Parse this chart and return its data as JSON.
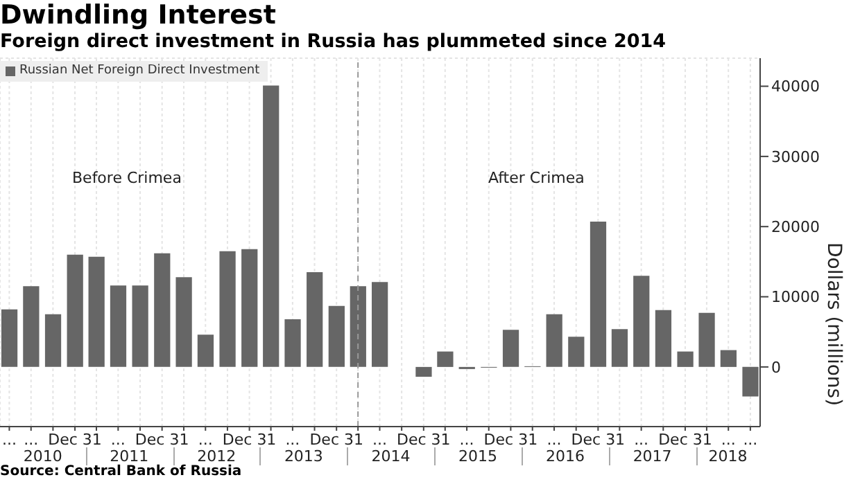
{
  "chart_data": {
    "type": "bar",
    "title": "Dwindling Interest",
    "subtitle": "Foreign direct investment in Russia has plummeted since 2014",
    "ylabel": "Dollars (millions)",
    "x": [
      "2010-03-31",
      "2010-06-30",
      "2010-09-30",
      "2010-12-31",
      "2011-03-31",
      "2011-06-30",
      "2011-09-30",
      "2011-12-31",
      "2012-03-31",
      "2012-06-30",
      "2012-09-30",
      "2012-12-31",
      "2013-03-31",
      "2013-06-30",
      "2013-09-30",
      "2013-12-31",
      "2014-03-31",
      "2014-06-30",
      "2014-09-30",
      "2014-12-31",
      "2015-03-31",
      "2015-06-30",
      "2015-09-30",
      "2015-12-31",
      "2016-03-31",
      "2016-06-30",
      "2016-09-30",
      "2016-12-31",
      "2017-03-31",
      "2017-06-30",
      "2017-09-30",
      "2017-12-31",
      "2018-03-31",
      "2018-06-30",
      "2018-09-30"
    ],
    "series": [
      {
        "name": "Russian Net Foreign Direct Investment",
        "color": "#666666",
        "values": [
          8200,
          11500,
          7500,
          16000,
          15700,
          11600,
          11600,
          16200,
          12800,
          4600,
          16500,
          16800,
          40100,
          6800,
          13500,
          8700,
          11500,
          12100,
          0,
          -1400,
          2200,
          -300,
          -100,
          5300,
          100,
          7500,
          4300,
          20700,
          5400,
          13000,
          8100,
          2200,
          7700,
          2400,
          -4200
        ]
      }
    ],
    "xlim": [
      "2010-02-20",
      "2018-11-10"
    ],
    "xticks": [
      {
        "value": "2010-03-31",
        "label": "..."
      },
      {
        "value": "2010-06-30",
        "label": "..."
      },
      {
        "value": "2010-09-30",
        "label": null
      },
      {
        "value": "2010-12-31",
        "label": "Dec 31"
      },
      {
        "value": "2011-03-31",
        "label": null
      },
      {
        "value": "2011-06-30",
        "label": "..."
      },
      {
        "value": "2011-09-30",
        "label": null
      },
      {
        "value": "2011-12-31",
        "label": "Dec 31"
      },
      {
        "value": "2012-03-31",
        "label": null
      },
      {
        "value": "2012-06-30",
        "label": "..."
      },
      {
        "value": "2012-09-30",
        "label": null
      },
      {
        "value": "2012-12-31",
        "label": "Dec 31"
      },
      {
        "value": "2013-03-31",
        "label": null
      },
      {
        "value": "2013-06-30",
        "label": "..."
      },
      {
        "value": "2013-09-30",
        "label": null
      },
      {
        "value": "2013-12-31",
        "label": "Dec 31"
      },
      {
        "value": "2014-03-31",
        "label": null
      },
      {
        "value": "2014-06-30",
        "label": "..."
      },
      {
        "value": "2014-09-30",
        "label": null
      },
      {
        "value": "2014-12-31",
        "label": "Dec 31"
      },
      {
        "value": "2015-03-31",
        "label": null
      },
      {
        "value": "2015-06-30",
        "label": "..."
      },
      {
        "value": "2015-09-30",
        "label": null
      },
      {
        "value": "2015-12-31",
        "label": "Dec 31"
      },
      {
        "value": "2016-03-31",
        "label": null
      },
      {
        "value": "2016-06-30",
        "label": "..."
      },
      {
        "value": "2016-09-30",
        "label": null
      },
      {
        "value": "2016-12-31",
        "label": "Dec 31"
      },
      {
        "value": "2017-03-31",
        "label": null
      },
      {
        "value": "2017-06-30",
        "label": "..."
      },
      {
        "value": "2017-09-30",
        "label": null
      },
      {
        "value": "2017-12-31",
        "label": "Dec 31"
      },
      {
        "value": "2018-03-31",
        "label": null
      },
      {
        "value": "2018-06-30",
        "label": "..."
      },
      {
        "value": "2018-09-30",
        "label": "..."
      }
    ],
    "ylim": [
      -8500,
      44000
    ],
    "yticks": [
      0,
      10000,
      20000,
      30000,
      40000
    ],
    "grid": true,
    "legend": "top left",
    "ref_lines": [
      {
        "axis": "x",
        "value": "2014-03-31",
        "color": "#999999",
        "line_style": "dashed"
      }
    ],
    "annotations": [
      "Before Crimea",
      "After Crimea",
      "2010",
      "2011",
      "2012",
      "2013",
      "2014",
      "2015",
      "2016",
      "2017",
      "2018",
      "Source: Central Bank of Russia"
    ]
  }
}
